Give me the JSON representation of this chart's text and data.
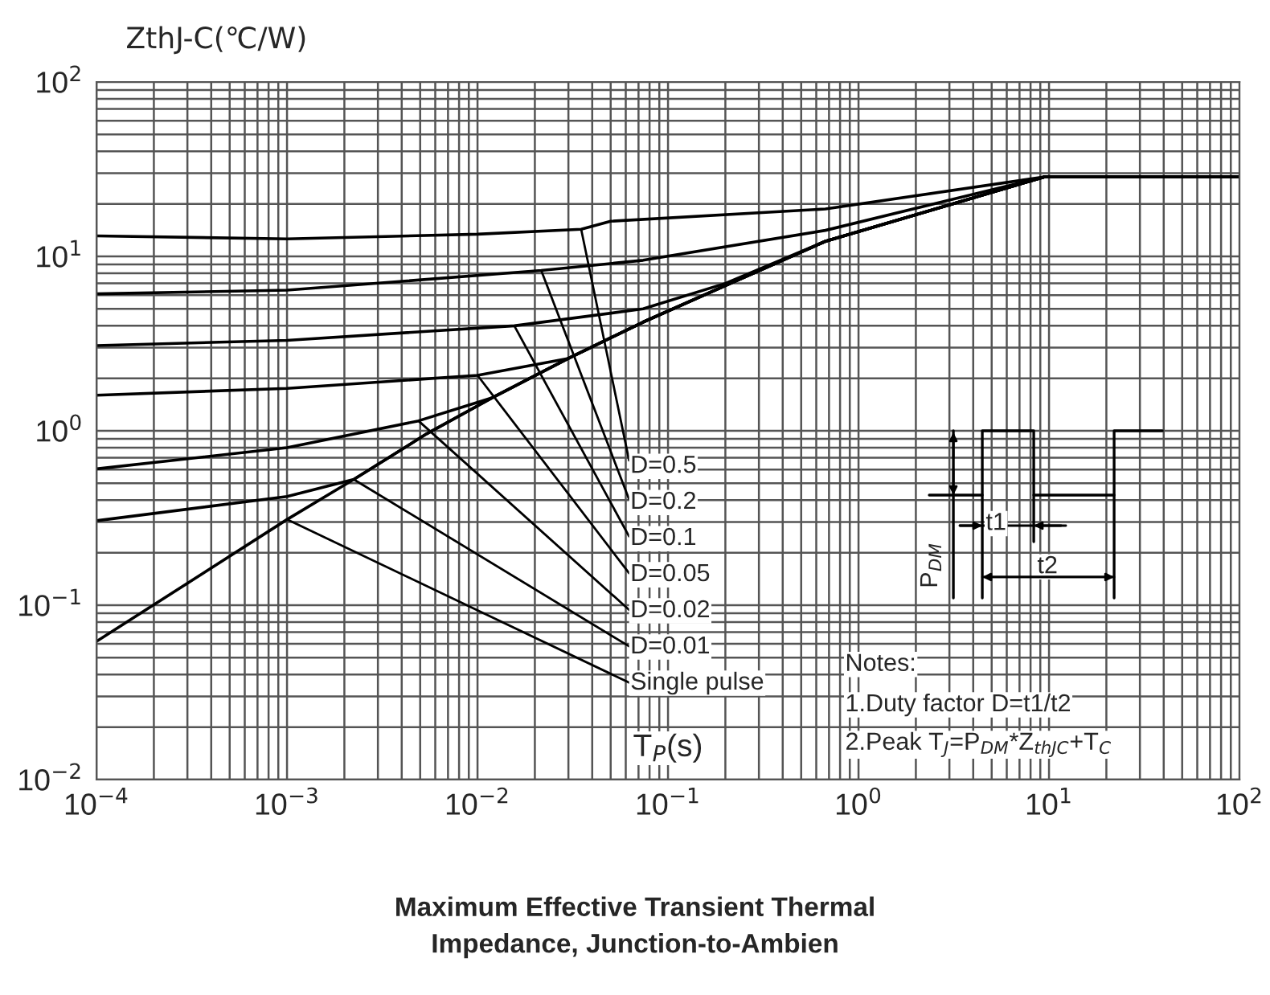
{
  "chart_data": {
    "type": "line",
    "title": "Maximum Effective Transient Thermal\nImpedance, Junction-to-Ambien",
    "xlabel": "T$_{P}$(s)",
    "ylabel": "ZthJ-C(℃/W)",
    "log": "xy",
    "grid": true,
    "marker": "none",
    "line_style": "solid",
    "xlim": [
      0.0001,
      100
    ],
    "ylim": [
      0.01,
      100
    ],
    "xticks": [
      {
        "value": 0.0001,
        "label": "10$^{−4}$"
      },
      {
        "value": 0.001,
        "label": "10$^{−3}$"
      },
      {
        "value": 0.01,
        "label": "10$^{−2}$"
      },
      {
        "value": 0.1,
        "label": "10$^{−1}$"
      },
      {
        "value": 1,
        "label": "10$^{0}$"
      },
      {
        "value": 10,
        "label": "10$^{1}$"
      },
      {
        "value": 100,
        "label": "10$^{2}$"
      }
    ],
    "yticks": [
      {
        "value": 0.01,
        "label": "10$^{−2}$"
      },
      {
        "value": 0.1,
        "label": "10$^{−1}$"
      },
      {
        "value": 1,
        "label": "10$^{0}$"
      },
      {
        "value": 10,
        "label": "10$^{1}$"
      },
      {
        "value": 100,
        "label": "10$^{2}$"
      }
    ],
    "series": [
      {
        "color": "#000000",
        "x": [
          0.0001,
          0.001,
          0.01,
          0.035,
          0.05,
          0.67,
          9.5,
          100
        ],
        "values": [
          13.1,
          12.6,
          13.4,
          14.3,
          15.9,
          18.7,
          28.6,
          28.6
        ]
      },
      {
        "color": "#000000",
        "x": [
          0.0001,
          0.001,
          0.0216,
          0.074,
          0.67,
          9.5,
          100
        ],
        "values": [
          6.1,
          6.4,
          8.3,
          9.5,
          14.1,
          28.6,
          28.6
        ]
      },
      {
        "color": "#000000",
        "x": [
          0.0001,
          0.001,
          0.0156,
          0.074,
          0.2,
          0.67,
          9.5,
          100
        ],
        "values": [
          3.08,
          3.3,
          4.0,
          5.0,
          7.0,
          12.2,
          28.6,
          28.6
        ]
      },
      {
        "color": "#000000",
        "x": [
          0.0001,
          0.001,
          0.01,
          0.03,
          0.074,
          0.2,
          0.67,
          9.5,
          100
        ],
        "values": [
          1.6,
          1.75,
          2.08,
          2.6,
          4.2,
          6.8,
          12.2,
          28.6,
          28.6
        ]
      },
      {
        "color": "#000000",
        "x": [
          0.0001,
          0.001,
          0.0049,
          0.012,
          0.03,
          0.074,
          0.2,
          0.67,
          9.5,
          100
        ],
        "values": [
          0.605,
          0.8,
          1.14,
          1.55,
          2.6,
          4.2,
          6.8,
          12.2,
          28.6,
          28.6
        ]
      },
      {
        "color": "#000000",
        "x": [
          0.0001,
          0.001,
          0.00224,
          0.0054,
          0.012,
          0.03,
          0.074,
          0.2,
          0.67,
          9.5,
          100
        ],
        "values": [
          0.305,
          0.42,
          0.526,
          0.96,
          1.55,
          2.6,
          4.2,
          6.8,
          12.2,
          28.6,
          28.6
        ]
      },
      {
        "color": "#000000",
        "x": [
          0.0001,
          0.001,
          0.00224,
          0.0054,
          0.012,
          0.03,
          0.074,
          0.2,
          0.67,
          9.5,
          100
        ],
        "values": [
          0.062,
          0.31,
          0.526,
          0.96,
          1.55,
          2.6,
          4.2,
          6.8,
          12.2,
          28.6,
          28.6
        ]
      }
    ],
    "annotations": [
      {
        "text": "D=0.5",
        "x": 0.035,
        "y": 14.3
      },
      {
        "text": "D=0.2",
        "x": 0.0216,
        "y": 8.3
      },
      {
        "text": "D=0.1",
        "x": 0.0156,
        "y": 4.0
      },
      {
        "text": "D=0.05",
        "x": 0.01,
        "y": 2.08
      },
      {
        "text": "D=0.02",
        "x": 0.0049,
        "y": 1.14
      },
      {
        "text": "D=0.01",
        "x": 0.00224,
        "y": 0.526
      },
      {
        "text": "Single pulse",
        "x": 0.001,
        "y": 0.31
      },
      "Notes:",
      "1.Duty factor D=t1/t2",
      "2.Peak T$_{J}$=P$_{DM}$*Z$_{thJC}$+T$_{C}$",
      "t1",
      "t2",
      "P$_{DM}$"
    ]
  }
}
